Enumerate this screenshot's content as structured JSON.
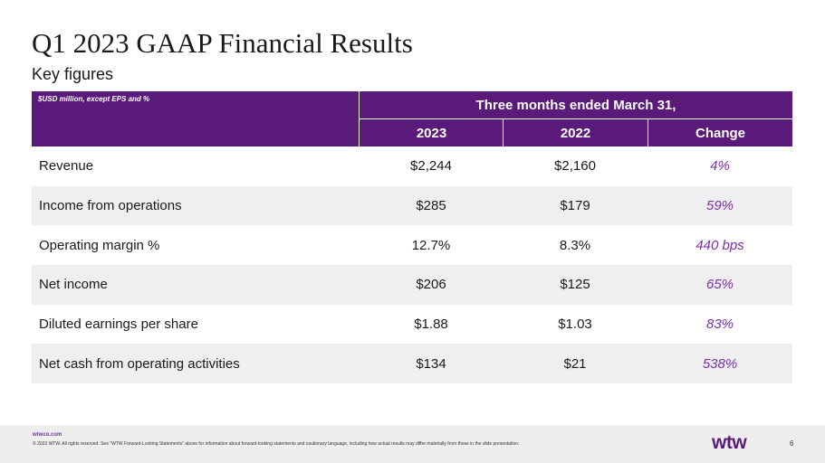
{
  "slide": {
    "title": "Q1 2023 GAAP Financial Results",
    "subtitle": "Key figures"
  },
  "table": {
    "unit_note": "$USD million, except EPS and %",
    "period_header": "Three months ended March 31,",
    "columns": [
      "2023",
      "2022",
      "Change"
    ],
    "rows": [
      {
        "label": "Revenue",
        "v2023": "$2,244",
        "v2022": "$2,160",
        "change": "4%"
      },
      {
        "label": "Income from operations",
        "v2023": "$285",
        "v2022": "$179",
        "change": "59%"
      },
      {
        "label": "Operating margin %",
        "v2023": "12.7%",
        "v2022": "8.3%",
        "change": "440 bps"
      },
      {
        "label": "Net income",
        "v2023": "$206",
        "v2022": "$125",
        "change": "65%"
      },
      {
        "label": "Diluted earnings per share",
        "v2023": "$1.88",
        "v2022": "$1.03",
        "change": "83%"
      },
      {
        "label": "Net cash from operating activities",
        "v2023": "$134",
        "v2022": "$21",
        "change": "538%"
      }
    ]
  },
  "footer": {
    "url": "wtwco.com",
    "legal": "© 2023 WTW. All rights reserved. See \"WTW Forward-Looking Statements\" above for information about forward-looking statements and cautionary language, including how actual results may differ materially from those in the slide presentation.",
    "logo_text": "wtw",
    "page_number": "6"
  },
  "colors": {
    "header_bg": "#5a1a7a",
    "change_text": "#7b2fa8",
    "row_shade": "#efefef"
  }
}
